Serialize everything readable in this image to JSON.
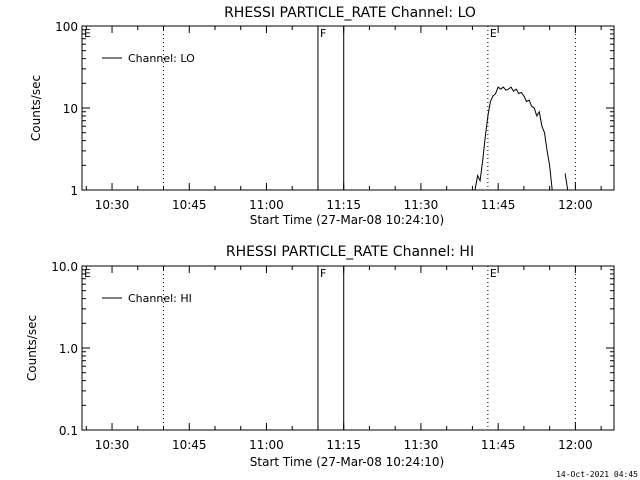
{
  "chart_data": [
    {
      "type": "line",
      "title": "RHESSI PARTICLE_RATE Channel: LO",
      "xlabel": "Start Time (27-Mar-08 10:24:10)",
      "ylabel": "Counts/sec",
      "yscale": "log",
      "xlim": [
        "10:24:10",
        "12:07:30"
      ],
      "ylim": [
        1,
        100
      ],
      "x_ticks": [
        "10:30",
        "10:45",
        "11:00",
        "11:15",
        "11:30",
        "11:45",
        "12:00"
      ],
      "y_ticks": [
        "1",
        "10",
        "100"
      ],
      "legend": {
        "position": "top-left",
        "entries": [
          "Channel: LO"
        ]
      },
      "markers": [
        {
          "label": "E",
          "time": "10:24:10",
          "style": "dotted"
        },
        {
          "label": "",
          "time": "10:40:00",
          "style": "dotted"
        },
        {
          "label": "F",
          "time": "11:10:00",
          "style": "solid"
        },
        {
          "label": "",
          "time": "11:15:00",
          "style": "solid"
        },
        {
          "label": "E",
          "time": "11:43:00",
          "style": "dotted"
        },
        {
          "label": "",
          "time": "12:00:00",
          "style": "dotted"
        }
      ],
      "series": [
        {
          "name": "Channel: LO",
          "x": [
            "11:40:30",
            "11:41:00",
            "11:41:30",
            "11:42:00",
            "11:42:30",
            "11:43:00",
            "11:43:30",
            "11:44:00",
            "11:44:30",
            "11:45:00",
            "11:45:30",
            "11:46:00",
            "11:46:30",
            "11:47:00",
            "11:47:30",
            "11:48:00",
            "11:48:30",
            "11:49:00",
            "11:49:30",
            "11:50:00",
            "11:50:30",
            "11:51:00",
            "11:51:30",
            "11:52:00",
            "11:52:30",
            "11:53:00",
            "11:53:30",
            "11:54:00",
            "11:54:30",
            "11:55:00",
            "11:55:30",
            "11:56:00",
            "11:56:30",
            "11:57:00",
            "11:57:30",
            "11:58:00",
            "11:58:30"
          ],
          "y": [
            1.0,
            1.5,
            1.3,
            2.3,
            4.5,
            8.0,
            12.0,
            14.0,
            15.0,
            18.0,
            17.0,
            18.0,
            16.5,
            17.0,
            18.0,
            16.0,
            17.0,
            15.0,
            15.5,
            14.0,
            12.0,
            12.5,
            10.5,
            10.0,
            8.0,
            9.0,
            6.0,
            5.0,
            3.0,
            2.0,
            1.0,
            null,
            null,
            null,
            null,
            1.6,
            1.0
          ]
        }
      ]
    },
    {
      "type": "line",
      "title": "RHESSI PARTICLE_RATE Channel: HI",
      "xlabel": "Start Time (27-Mar-08 10:24:10)",
      "ylabel": "Counts/sec",
      "yscale": "log",
      "xlim": [
        "10:24:10",
        "12:07:30"
      ],
      "ylim": [
        0.1,
        10
      ],
      "x_ticks": [
        "10:30",
        "10:45",
        "11:00",
        "11:15",
        "11:30",
        "11:45",
        "12:00"
      ],
      "y_ticks": [
        "0.1",
        "1.0",
        "10.0"
      ],
      "legend": {
        "position": "top-left",
        "entries": [
          "Channel: HI"
        ]
      },
      "markers": [
        {
          "label": "E",
          "time": "10:24:10",
          "style": "dotted"
        },
        {
          "label": "",
          "time": "10:40:00",
          "style": "dotted"
        },
        {
          "label": "F",
          "time": "11:10:00",
          "style": "solid"
        },
        {
          "label": "",
          "time": "11:15:00",
          "style": "solid"
        },
        {
          "label": "E",
          "time": "11:43:00",
          "style": "dotted"
        },
        {
          "label": "",
          "time": "12:00:00",
          "style": "dotted"
        }
      ],
      "series": [
        {
          "name": "Channel: HI",
          "x": [],
          "y": []
        }
      ]
    }
  ],
  "timestamp": "14-Oct-2021 04:45"
}
